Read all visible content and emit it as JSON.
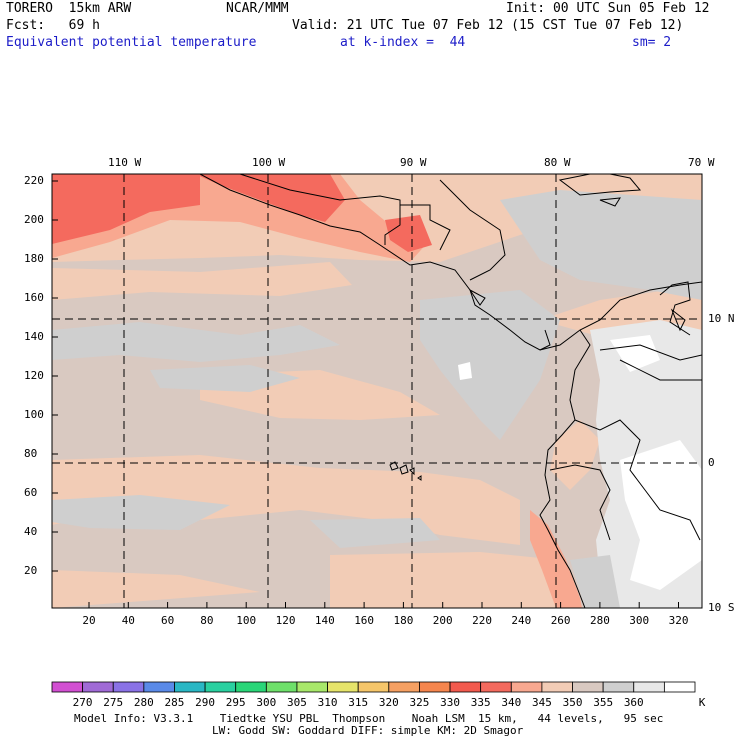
{
  "header": {
    "model": "TORERO  15km ARW",
    "center": "NCAR/MMM",
    "init": "Init: 00 UTC Sun 05 Feb 12",
    "fcst": "Fcst:   69 h",
    "valid": "Valid: 21 UTC Tue 07 Feb 12 (15 CST Tue 07 Feb 12)",
    "field": "Equivalent potential temperature",
    "level": "at k-index =  44",
    "smooth": "sm= 2"
  },
  "map": {
    "top_lon_labels": [
      "110 W",
      "100 W",
      "90 W",
      "80 W",
      "70 W"
    ],
    "right_lat_labels": [
      "10 N",
      "0",
      "10 S"
    ],
    "y_ticks": [
      "220",
      "200",
      "180",
      "160",
      "140",
      "120",
      "100",
      "80",
      "60",
      "40",
      "20"
    ],
    "x_ticks": [
      "20",
      "40",
      "60",
      "80",
      "100",
      "120",
      "140",
      "160",
      "180",
      "200",
      "220",
      "240",
      "260",
      "280",
      "300",
      "320"
    ]
  },
  "colorbar": {
    "labels": [
      "270",
      "275",
      "280",
      "285",
      "290",
      "295",
      "300",
      "305",
      "310",
      "315",
      "320",
      "325",
      "330",
      "335",
      "340",
      "345",
      "350",
      "355",
      "360"
    ],
    "unit": "K",
    "colors": [
      "#d24fd2",
      "#a06ad6",
      "#8a72e6",
      "#5a8ae8",
      "#2ab7c4",
      "#2ad0a0",
      "#2ad678",
      "#6ee06a",
      "#a8e86a",
      "#e6e46a",
      "#f6c66a",
      "#f6a062",
      "#f6864e",
      "#f25a4e",
      "#f46a5e",
      "#f8a890",
      "#f2ccb6",
      "#d9c9c1",
      "#cfcfcf",
      "#e8e8e8",
      "#ffffff"
    ]
  },
  "footer": {
    "line1": "Model Info: V3.3.1    Tiedtke YSU PBL  Thompson    Noah LSM  15 km,   44 levels,   95 sec",
    "line2": "LW: Godd SW: Goddard DIFF: simple KM: 2D Smagor"
  }
}
